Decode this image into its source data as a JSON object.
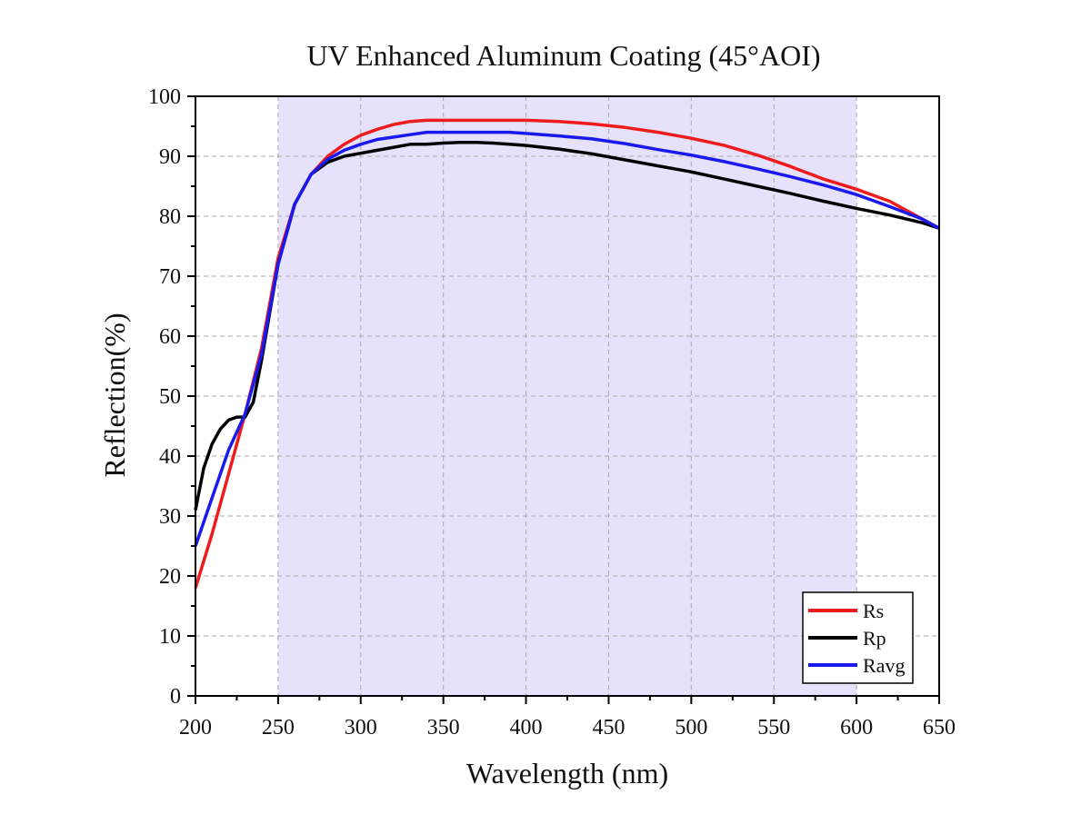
{
  "chart_data": {
    "type": "line",
    "title": "UV Enhanced Aluminum Coating (45°AOI)",
    "xlabel": "Wavelength (nm)",
    "ylabel": "Reflection(%)",
    "xlim": [
      200,
      650
    ],
    "ylim": [
      0,
      100
    ],
    "xticks": [
      200,
      250,
      300,
      350,
      400,
      450,
      500,
      550,
      600,
      650
    ],
    "yticks": [
      0,
      10,
      20,
      30,
      40,
      50,
      60,
      70,
      80,
      90,
      100
    ],
    "grid": true,
    "legend_position": "bottom-right",
    "highlight_band": {
      "x_start": 250,
      "x_end": 600,
      "color": "#e6e2fb"
    },
    "series": [
      {
        "name": "Rs",
        "color": "#ee1c1c",
        "x": [
          200,
          210,
          220,
          230,
          240,
          250,
          260,
          270,
          280,
          290,
          300,
          310,
          320,
          330,
          340,
          350,
          360,
          370,
          380,
          390,
          400,
          420,
          440,
          460,
          480,
          500,
          520,
          540,
          560,
          580,
          600,
          620,
          640,
          650
        ],
        "y": [
          18,
          27,
          37,
          47,
          58,
          73,
          82,
          87,
          90,
          92,
          93.5,
          94.5,
          95.3,
          95.8,
          96,
          96,
          96,
          96,
          96,
          96,
          96,
          95.8,
          95.4,
          94.8,
          94,
          93,
          91.8,
          90.2,
          88.3,
          86.2,
          84.5,
          82.5,
          79.5,
          78
        ]
      },
      {
        "name": "Rp",
        "color": "#000000",
        "x": [
          200,
          205,
          210,
          215,
          220,
          225,
          230,
          235,
          240,
          245,
          250,
          260,
          270,
          280,
          290,
          300,
          310,
          320,
          330,
          340,
          350,
          360,
          370,
          380,
          390,
          400,
          420,
          440,
          460,
          480,
          500,
          520,
          540,
          560,
          580,
          600,
          620,
          640,
          650
        ],
        "y": [
          31,
          38,
          42,
          44.5,
          46,
          46.5,
          46.5,
          49,
          56,
          64,
          72,
          82,
          87,
          89,
          90,
          90.5,
          91,
          91.5,
          92,
          92,
          92.2,
          92.3,
          92.3,
          92.2,
          92,
          91.8,
          91.2,
          90.4,
          89.4,
          88.4,
          87.4,
          86.2,
          85,
          83.8,
          82.5,
          81.3,
          80.2,
          78.9,
          78
        ]
      },
      {
        "name": "Ravg",
        "color": "#1a1aee",
        "x": [
          200,
          210,
          220,
          230,
          240,
          250,
          260,
          270,
          280,
          290,
          300,
          310,
          320,
          330,
          340,
          350,
          360,
          370,
          380,
          390,
          400,
          420,
          440,
          460,
          480,
          500,
          520,
          540,
          560,
          580,
          600,
          620,
          640,
          650
        ],
        "y": [
          25,
          33,
          41,
          47,
          57,
          72,
          82,
          87,
          89.5,
          91,
          92,
          92.8,
          93.2,
          93.6,
          94,
          94,
          94,
          94,
          94,
          94,
          93.8,
          93.4,
          92.9,
          92.1,
          91.1,
          90.2,
          89.1,
          87.9,
          86.6,
          85.2,
          83.6,
          81.6,
          79.5,
          78
        ]
      }
    ]
  }
}
